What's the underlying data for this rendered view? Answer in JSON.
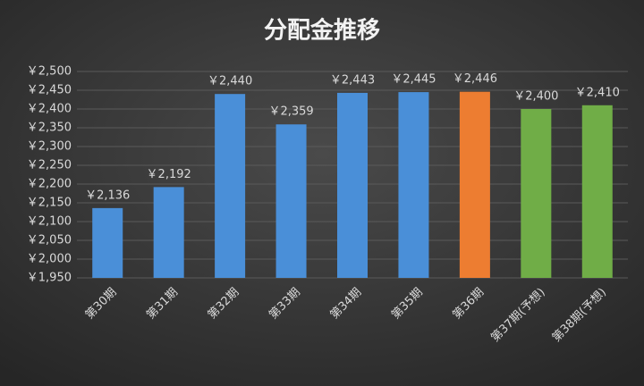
{
  "chart_data": {
    "type": "bar",
    "title": "分配金推移",
    "categories": [
      "第30期",
      "第31期",
      "第32期",
      "第33期",
      "第34期",
      "第35期",
      "第36期",
      "第37期(予想)",
      "第38期(予想)"
    ],
    "values": [
      2136,
      2192,
      2440,
      2359,
      2443,
      2445,
      2446,
      2400,
      2410
    ],
    "value_labels": [
      "￥2,136",
      "￥2,192",
      "￥2,440",
      "￥2,359",
      "￥2,443",
      "￥2,445",
      "￥2,446",
      "￥2,400",
      "￥2,410"
    ],
    "colors": [
      "#4a8fd8",
      "#4a8fd8",
      "#4a8fd8",
      "#4a8fd8",
      "#4a8fd8",
      "#4a8fd8",
      "#ed7d31",
      "#70ad47",
      "#70ad47"
    ],
    "ylim": [
      1950,
      2500
    ],
    "yticks": [
      {
        "value": 1950,
        "label": "￥1,950"
      },
      {
        "value": 2000,
        "label": "￥2,000"
      },
      {
        "value": 2050,
        "label": "￥2,050"
      },
      {
        "value": 2100,
        "label": "￥2,100"
      },
      {
        "value": 2150,
        "label": "￥2,150"
      },
      {
        "value": 2200,
        "label": "￥2,200"
      },
      {
        "value": 2250,
        "label": "￥2,250"
      },
      {
        "value": 2300,
        "label": "￥2,300"
      },
      {
        "value": 2350,
        "label": "￥2,350"
      },
      {
        "value": 2400,
        "label": "￥2,400"
      },
      {
        "value": 2450,
        "label": "￥2,450"
      },
      {
        "value": 2500,
        "label": "￥2,500"
      }
    ],
    "grid": true
  }
}
